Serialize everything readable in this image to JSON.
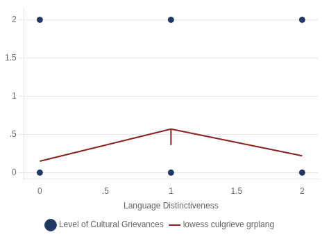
{
  "chart_data": {
    "type": "scatter",
    "xlabel": "Language Distinctiveness",
    "xlim": [
      -0.12,
      2.12
    ],
    "ylim": [
      -0.08,
      2.15
    ],
    "xticks": [
      0,
      {
        "value": 0.5,
        "label": ".5"
      },
      1,
      1.5,
      2
    ],
    "yticks": [
      0,
      {
        "value": 0.5,
        "label": ".5"
      },
      1,
      1.5,
      2
    ],
    "grid": "y",
    "legend": "bottom",
    "series": [
      {
        "name": "Level of Cultural Grievances",
        "type": "scatter",
        "color": "#1f3864",
        "x": [
          0,
          0,
          1,
          1,
          2,
          2
        ],
        "values": [
          2,
          0,
          2,
          0,
          2,
          0
        ]
      },
      {
        "name": "lowess culgrieve grplang",
        "type": "line",
        "color": "#8b2020",
        "x": [
          0,
          1,
          null,
          1,
          1,
          null,
          1,
          2
        ],
        "values": [
          0.15,
          0.57,
          null,
          0.36,
          0.57,
          null,
          0.57,
          0.22
        ]
      }
    ]
  }
}
